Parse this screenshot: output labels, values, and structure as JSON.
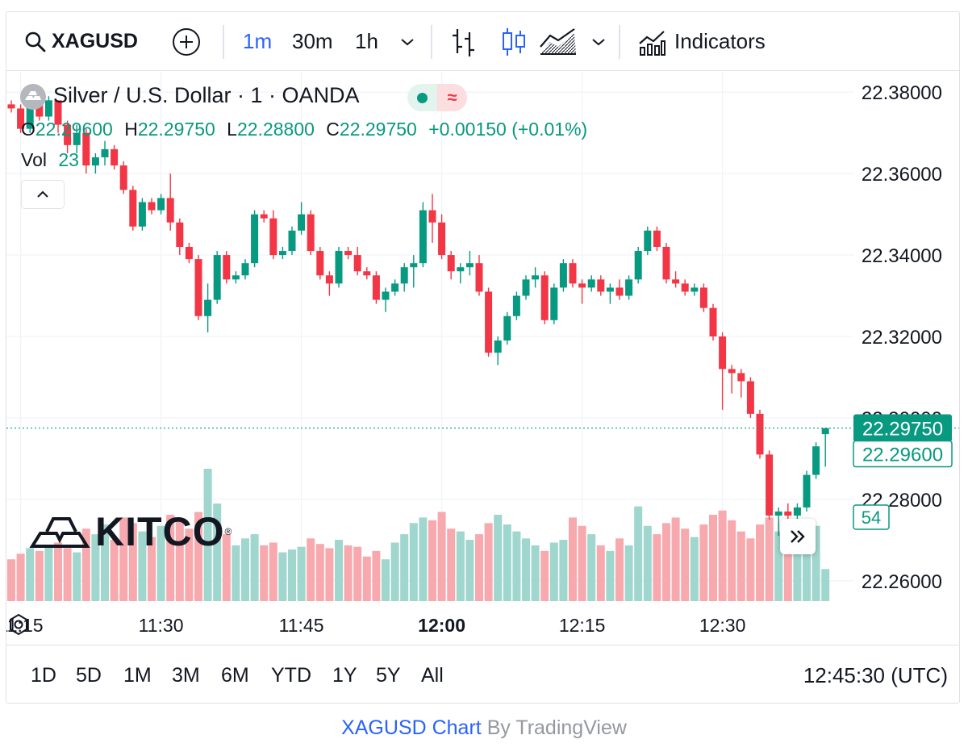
{
  "toolbar": {
    "symbol": "XAGUSD",
    "intervals": [
      "1m",
      "30m",
      "1h"
    ],
    "active_interval": "1m",
    "indicators_label": "Indicators"
  },
  "legend": {
    "title": "Silver / U.S. Dollar · 1 · OANDA",
    "open_label": "O",
    "open": "22.29600",
    "high_label": "H",
    "high": "22.29750",
    "low_label": "L",
    "low": "22.28800",
    "close_label": "C",
    "close": "22.29750",
    "change": "+0.00150 (+0.01%)",
    "vol_label": "Vol",
    "vol": "23"
  },
  "price_axis": {
    "ticks": [
      "22.38000",
      "22.36000",
      "22.34000",
      "22.32000",
      "22.28000",
      "22.26000"
    ],
    "last_price": "22.29750",
    "prev_price": "22.29600",
    "volume_badge": "54"
  },
  "time_axis": {
    "ticks": [
      "11:15",
      "11:30",
      "11:45",
      "12:00",
      "12:15",
      "12:30"
    ],
    "bold_tick": "12:00"
  },
  "ranges": [
    "1D",
    "5D",
    "1M",
    "3M",
    "6M",
    "YTD",
    "1Y",
    "5Y",
    "All"
  ],
  "clock": "12:45:30 (UTC)",
  "watermark": "KITCO",
  "footer": {
    "link": "XAGUSD Chart",
    "by": "By TradingView"
  },
  "colors": {
    "up": "#089981",
    "down": "#f23645",
    "accent": "#2962ff",
    "vol_up": "#9fd6cd",
    "vol_down": "#f7a9ae"
  },
  "chart_data": {
    "type": "candlestick",
    "interval": "1m",
    "ylim": [
      22.255,
      22.385
    ],
    "y_ticks": [
      22.26,
      22.28,
      22.3,
      22.32,
      22.34,
      22.36,
      22.38
    ],
    "x_ticks": [
      "11:15",
      "11:30",
      "11:45",
      "12:00",
      "12:15",
      "12:30"
    ],
    "start_time": "11:14",
    "candles": [
      [
        22.377,
        22.378,
        22.375,
        22.376,
        30
      ],
      [
        22.376,
        22.377,
        22.37,
        22.371,
        34
      ],
      [
        22.371,
        22.379,
        22.37,
        22.378,
        38
      ],
      [
        22.378,
        22.38,
        22.373,
        22.374,
        36
      ],
      [
        22.374,
        22.379,
        22.373,
        22.378,
        40
      ],
      [
        22.378,
        22.378,
        22.37,
        22.372,
        42
      ],
      [
        22.372,
        22.373,
        22.365,
        22.367,
        38
      ],
      [
        22.367,
        22.372,
        22.365,
        22.37,
        35
      ],
      [
        22.37,
        22.371,
        22.36,
        22.362,
        52
      ],
      [
        22.362,
        22.365,
        22.36,
        22.364,
        48
      ],
      [
        22.364,
        22.368,
        22.362,
        22.366,
        55
      ],
      [
        22.366,
        22.367,
        22.361,
        22.362,
        44
      ],
      [
        22.362,
        22.363,
        22.355,
        22.356,
        60
      ],
      [
        22.356,
        22.357,
        22.346,
        22.347,
        56
      ],
      [
        22.347,
        22.354,
        22.346,
        22.353,
        50
      ],
      [
        22.353,
        22.354,
        22.35,
        22.351,
        46
      ],
      [
        22.351,
        22.355,
        22.35,
        22.354,
        54
      ],
      [
        22.354,
        22.36,
        22.346,
        22.348,
        62
      ],
      [
        22.348,
        22.349,
        22.34,
        22.342,
        58
      ],
      [
        22.342,
        22.343,
        22.338,
        22.339,
        52
      ],
      [
        22.339,
        22.34,
        22.324,
        22.325,
        64
      ],
      [
        22.325,
        22.333,
        22.321,
        22.329,
        95
      ],
      [
        22.329,
        22.341,
        22.328,
        22.34,
        70
      ],
      [
        22.34,
        22.341,
        22.333,
        22.334,
        48
      ],
      [
        22.334,
        22.336,
        22.333,
        22.335,
        40
      ],
      [
        22.335,
        22.339,
        22.334,
        22.338,
        45
      ],
      [
        22.338,
        22.351,
        22.337,
        22.35,
        48
      ],
      [
        22.35,
        22.351,
        22.348,
        22.349,
        40
      ],
      [
        22.349,
        22.351,
        22.339,
        22.34,
        42
      ],
      [
        22.34,
        22.342,
        22.339,
        22.341,
        35
      ],
      [
        22.341,
        22.347,
        22.34,
        22.346,
        37
      ],
      [
        22.346,
        22.353,
        22.345,
        22.35,
        39
      ],
      [
        22.35,
        22.351,
        22.34,
        22.341,
        45
      ],
      [
        22.341,
        22.342,
        22.334,
        22.335,
        41
      ],
      [
        22.335,
        22.336,
        22.33,
        22.333,
        38
      ],
      [
        22.333,
        22.342,
        22.332,
        22.341,
        44
      ],
      [
        22.341,
        22.342,
        22.339,
        22.34,
        40
      ],
      [
        22.34,
        22.342,
        22.335,
        22.336,
        39
      ],
      [
        22.336,
        22.337,
        22.334,
        22.335,
        32
      ],
      [
        22.335,
        22.336,
        22.328,
        22.329,
        36
      ],
      [
        22.329,
        22.332,
        22.326,
        22.331,
        30
      ],
      [
        22.331,
        22.334,
        22.33,
        22.333,
        42
      ],
      [
        22.333,
        22.338,
        22.331,
        22.337,
        48
      ],
      [
        22.337,
        22.34,
        22.332,
        22.338,
        56
      ],
      [
        22.338,
        22.353,
        22.337,
        22.351,
        60
      ],
      [
        22.351,
        22.355,
        22.343,
        22.348,
        58
      ],
      [
        22.348,
        22.35,
        22.339,
        22.34,
        64
      ],
      [
        22.34,
        22.341,
        22.334,
        22.336,
        52
      ],
      [
        22.336,
        22.338,
        22.333,
        22.337,
        50
      ],
      [
        22.337,
        22.341,
        22.335,
        22.338,
        44
      ],
      [
        22.338,
        22.34,
        22.33,
        22.331,
        48
      ],
      [
        22.331,
        22.332,
        22.315,
        22.316,
        56
      ],
      [
        22.316,
        22.32,
        22.313,
        22.319,
        62
      ],
      [
        22.319,
        22.326,
        22.318,
        22.325,
        55
      ],
      [
        22.325,
        22.331,
        22.324,
        22.33,
        50
      ],
      [
        22.33,
        22.335,
        22.329,
        22.334,
        45
      ],
      [
        22.334,
        22.337,
        22.332,
        22.335,
        40
      ],
      [
        22.335,
        22.336,
        22.323,
        22.324,
        36
      ],
      [
        22.324,
        22.333,
        22.323,
        22.332,
        42
      ],
      [
        22.332,
        22.339,
        22.331,
        22.338,
        44
      ],
      [
        22.338,
        22.339,
        22.332,
        22.333,
        60
      ],
      [
        22.333,
        22.334,
        22.328,
        22.332,
        54
      ],
      [
        22.332,
        22.335,
        22.331,
        22.334,
        48
      ],
      [
        22.334,
        22.335,
        22.33,
        22.331,
        40
      ],
      [
        22.331,
        22.333,
        22.328,
        22.332,
        36
      ],
      [
        22.332,
        22.334,
        22.329,
        22.33,
        45
      ],
      [
        22.33,
        22.335,
        22.329,
        22.334,
        40
      ],
      [
        22.334,
        22.342,
        22.333,
        22.341,
        68
      ],
      [
        22.341,
        22.347,
        22.34,
        22.346,
        54
      ],
      [
        22.346,
        22.347,
        22.341,
        22.342,
        48
      ],
      [
        22.342,
        22.343,
        22.333,
        22.334,
        56
      ],
      [
        22.334,
        22.336,
        22.332,
        22.333,
        60
      ],
      [
        22.333,
        22.334,
        22.33,
        22.331,
        52
      ],
      [
        22.331,
        22.333,
        22.33,
        22.332,
        46
      ],
      [
        22.332,
        22.333,
        22.326,
        22.327,
        55
      ],
      [
        22.327,
        22.328,
        22.319,
        22.32,
        62
      ],
      [
        22.32,
        22.321,
        22.302,
        22.312,
        65
      ],
      [
        22.312,
        22.313,
        22.306,
        22.311,
        58
      ],
      [
        22.311,
        22.312,
        22.305,
        22.309,
        50
      ],
      [
        22.309,
        22.31,
        22.3,
        22.301,
        45
      ],
      [
        22.301,
        22.302,
        22.29,
        22.291,
        55
      ],
      [
        22.291,
        22.292,
        22.275,
        22.276,
        60
      ],
      [
        22.276,
        22.278,
        22.271,
        22.277,
        50
      ],
      [
        22.277,
        22.279,
        22.272,
        22.276,
        47
      ],
      [
        22.276,
        22.279,
        22.274,
        22.278,
        52
      ],
      [
        22.278,
        22.287,
        22.277,
        22.286,
        58
      ],
      [
        22.286,
        22.294,
        22.285,
        22.293,
        54
      ],
      [
        22.296,
        22.2975,
        22.288,
        22.2975,
        23
      ]
    ]
  }
}
